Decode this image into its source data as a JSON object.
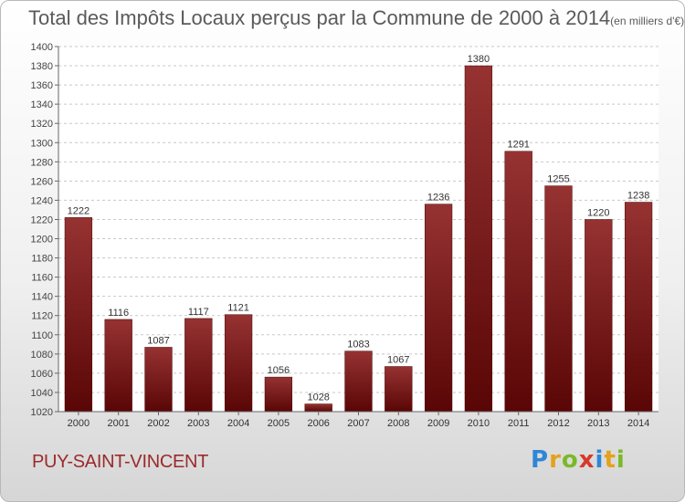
{
  "title_main": "Total des Impôts Locaux perçus par la Commune de 2000 à 2014",
  "title_unit": "(en milliers d'€)",
  "commune": "PUY-SAINT-VINCENT",
  "logo": {
    "letters": [
      "P",
      "r",
      "o",
      "x",
      "i",
      "t",
      "i"
    ],
    "colors": [
      "#2e86d6",
      "#e5a11b",
      "#7ab928",
      "#d63a2a",
      "#2e86d6",
      "#e5a11b",
      "#7ab928"
    ]
  },
  "chart_data": {
    "type": "bar",
    "title": "Total des Impôts Locaux perçus par la Commune de 2000 à 2014",
    "categories": [
      "2000",
      "2001",
      "2002",
      "2003",
      "2004",
      "2005",
      "2006",
      "2007",
      "2008",
      "2009",
      "2010",
      "2011",
      "2012",
      "2013",
      "2014"
    ],
    "values": [
      1222,
      1116,
      1087,
      1117,
      1121,
      1056,
      1028,
      1083,
      1067,
      1236,
      1380,
      1291,
      1255,
      1220,
      1238
    ],
    "ylim": [
      1020,
      1400
    ],
    "ytick_step": 20,
    "grid": true,
    "xlabel": "",
    "ylabel": "",
    "bar_color": "#8b1a1a"
  }
}
